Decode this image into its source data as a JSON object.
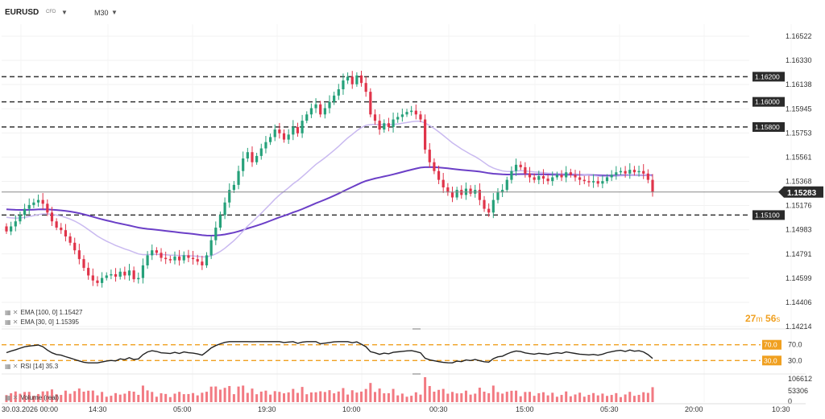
{
  "header": {
    "symbol": "EURUSD",
    "symbol_type": "CFD",
    "timeframe": "M30"
  },
  "colors": {
    "up": "#26a17a",
    "down": "#e0344a",
    "ema100": "#6b3fc7",
    "ema30": "#c9b9f0",
    "rsi": "#222222",
    "level_line": "#333333",
    "price_line": "#888888",
    "orange": "#f0a020",
    "volume": "#f27a82"
  },
  "chart_data": [
    {
      "type": "candlestick",
      "name": "price",
      "price_axis_ticks": [
        "1.16522",
        "1.16330",
        "1.16138",
        "1.15945",
        "1.15753",
        "1.15561",
        "1.15368",
        "1.15176",
        "1.14983",
        "1.14791",
        "1.14599",
        "1.14406",
        "1.14214"
      ],
      "ylim": [
        1.14214,
        1.16522
      ],
      "x_axis_labels": [
        "30.03.2026 00:00",
        "14:30",
        "05:00",
        "19:30",
        "10:00",
        "00:30",
        "15:00",
        "05:30",
        "20:00",
        "10:30"
      ],
      "current_price": "1.15283",
      "horizontal_levels": [
        "1.16200",
        "1.16000",
        "1.15800",
        "1.15100"
      ],
      "candle_closes": [
        1.1497,
        1.1501,
        1.1505,
        1.151,
        1.1515,
        1.1518,
        1.152,
        1.1522,
        1.1519,
        1.1512,
        1.1505,
        1.15,
        1.1498,
        1.1493,
        1.1488,
        1.1482,
        1.1475,
        1.1468,
        1.1462,
        1.1458,
        1.1456,
        1.146,
        1.1462,
        1.1463,
        1.1461,
        1.1465,
        1.1462,
        1.1466,
        1.1459,
        1.146,
        1.147,
        1.1478,
        1.1482,
        1.148,
        1.1476,
        1.1475,
        1.1474,
        1.1477,
        1.1474,
        1.1478,
        1.1476,
        1.1475,
        1.1473,
        1.147,
        1.1478,
        1.149,
        1.15,
        1.151,
        1.152,
        1.153,
        1.1534,
        1.1545,
        1.1555,
        1.156,
        1.1552,
        1.1557,
        1.1563,
        1.1568,
        1.1572,
        1.1578,
        1.1575,
        1.157,
        1.1574,
        1.158,
        1.1575,
        1.1585,
        1.159,
        1.1595,
        1.1598,
        1.159,
        1.1595,
        1.16,
        1.1605,
        1.161,
        1.1617,
        1.162,
        1.1614,
        1.1621,
        1.1615,
        1.1608,
        1.159,
        1.1585,
        1.1578,
        1.1583,
        1.158,
        1.1586,
        1.1588,
        1.159,
        1.1592,
        1.1593,
        1.159,
        1.1586,
        1.1562,
        1.1552,
        1.1545,
        1.1538,
        1.1532,
        1.1528,
        1.1524,
        1.153,
        1.1526,
        1.1531,
        1.1527,
        1.153,
        1.1522,
        1.1515,
        1.1512,
        1.1522,
        1.1528,
        1.153,
        1.1538,
        1.1545,
        1.155,
        1.1548,
        1.1543,
        1.154,
        1.1538,
        1.1541,
        1.1539,
        1.1537,
        1.154,
        1.1542,
        1.154,
        1.1544,
        1.1542,
        1.154,
        1.1538,
        1.1537,
        1.1536,
        1.1537,
        1.1535,
        1.1537,
        1.154,
        1.1542,
        1.1544,
        1.1545,
        1.1543,
        1.1546,
        1.1544,
        1.1545,
        1.1543,
        1.1538,
        1.15283
      ]
    },
    {
      "type": "line",
      "name": "EMA [100, 0]",
      "last_value": "1.15427"
    },
    {
      "type": "line",
      "name": "EMA [30, 0]",
      "last_value": "1.15395"
    },
    {
      "type": "line",
      "name": "RSI [14]",
      "last_value": "35.3",
      "levels": [
        "70.0",
        "30.0"
      ],
      "ylim": [
        0,
        100
      ]
    },
    {
      "type": "bar",
      "name": "Volume (real)",
      "axis_ticks": [
        "106612",
        "53306",
        "0"
      ]
    }
  ],
  "legend": {
    "ema100": "EMA [100, 0] 1.15427",
    "ema30": "EMA [30, 0] 1.15395",
    "rsi": "RSI [14] 35.3",
    "volume": "Volume (real)"
  },
  "countdown": {
    "min": "27",
    "min_unit": "m",
    "sec": "56",
    "sec_unit": "s"
  }
}
